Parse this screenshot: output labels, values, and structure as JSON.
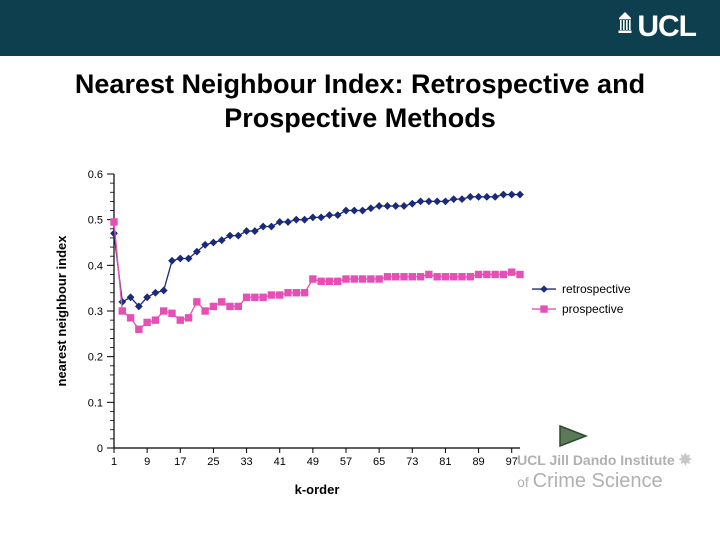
{
  "header": {
    "logo_text": "UCL",
    "bg_color": "#0d3f4f"
  },
  "title": "Nearest Neighbour Index: Retrospective and Prospective Methods",
  "chart": {
    "type": "line",
    "x_label": "k-order",
    "y_label": "nearest neighbour index",
    "x_label_fontsize": 13,
    "y_label_fontsize": 13,
    "x_label_fontweight": "bold",
    "y_label_fontweight": "bold",
    "xlim": [
      1,
      99
    ],
    "ylim": [
      0,
      0.6
    ],
    "y_ticks": [
      0,
      0.1,
      0.2,
      0.3,
      0.4,
      0.5,
      0.6
    ],
    "x_ticks": [
      1,
      9,
      17,
      25,
      33,
      41,
      49,
      57,
      65,
      73,
      81,
      89,
      97
    ],
    "y_major_tick_len": 7,
    "y_minor_tick_len": 4,
    "y_minor_per_major": 4,
    "x_tick_len": 5,
    "tick_fontsize": 11,
    "axis_color": "#000000",
    "background_color": "#ffffff",
    "grid": false,
    "marker_size": 3.2,
    "line_width": 1.3,
    "legend": {
      "position": "right",
      "items": [
        {
          "label": "retrospective",
          "color": "#1b2a7a",
          "marker": "diamond"
        },
        {
          "label": "prospective",
          "color": "#e64fb6",
          "marker": "square"
        }
      ],
      "fontsize": 12
    },
    "series": [
      {
        "name": "retrospective",
        "color": "#1b2a7a",
        "marker": "diamond",
        "x": [
          1,
          3,
          5,
          7,
          9,
          11,
          13,
          15,
          17,
          19,
          21,
          23,
          25,
          27,
          29,
          31,
          33,
          35,
          37,
          39,
          41,
          43,
          45,
          47,
          49,
          51,
          53,
          55,
          57,
          59,
          61,
          63,
          65,
          67,
          69,
          71,
          73,
          75,
          77,
          79,
          81,
          83,
          85,
          87,
          89,
          91,
          93,
          95,
          97,
          99
        ],
        "y": [
          0.47,
          0.32,
          0.33,
          0.31,
          0.33,
          0.34,
          0.345,
          0.41,
          0.415,
          0.415,
          0.43,
          0.445,
          0.45,
          0.455,
          0.465,
          0.465,
          0.475,
          0.475,
          0.485,
          0.485,
          0.495,
          0.495,
          0.5,
          0.5,
          0.505,
          0.505,
          0.51,
          0.51,
          0.52,
          0.52,
          0.52,
          0.525,
          0.53,
          0.53,
          0.53,
          0.53,
          0.535,
          0.54,
          0.54,
          0.54,
          0.54,
          0.545,
          0.545,
          0.55,
          0.55,
          0.55,
          0.55,
          0.555,
          0.555,
          0.555
        ]
      },
      {
        "name": "prospective",
        "color": "#e64fb6",
        "marker": "square",
        "x": [
          1,
          3,
          5,
          7,
          9,
          11,
          13,
          15,
          17,
          19,
          21,
          23,
          25,
          27,
          29,
          31,
          33,
          35,
          37,
          39,
          41,
          43,
          45,
          47,
          49,
          51,
          53,
          55,
          57,
          59,
          61,
          63,
          65,
          67,
          69,
          71,
          73,
          75,
          77,
          79,
          81,
          83,
          85,
          87,
          89,
          91,
          93,
          95,
          97,
          99
        ],
        "y": [
          0.495,
          0.3,
          0.285,
          0.26,
          0.275,
          0.28,
          0.3,
          0.295,
          0.28,
          0.285,
          0.32,
          0.3,
          0.31,
          0.32,
          0.31,
          0.31,
          0.33,
          0.33,
          0.33,
          0.335,
          0.335,
          0.34,
          0.34,
          0.34,
          0.37,
          0.365,
          0.365,
          0.365,
          0.37,
          0.37,
          0.37,
          0.37,
          0.37,
          0.375,
          0.375,
          0.375,
          0.375,
          0.375,
          0.38,
          0.375,
          0.375,
          0.375,
          0.375,
          0.375,
          0.38,
          0.38,
          0.38,
          0.38,
          0.385,
          0.38
        ]
      }
    ]
  },
  "footer": {
    "line1_text": "UCL Jill Dando Institute",
    "line2_prefix": "of ",
    "line2_main": "Crime Science",
    "color": "#b0b0b0"
  },
  "play_button": {
    "fill": "#5a7a5a",
    "stroke": "#304830"
  }
}
